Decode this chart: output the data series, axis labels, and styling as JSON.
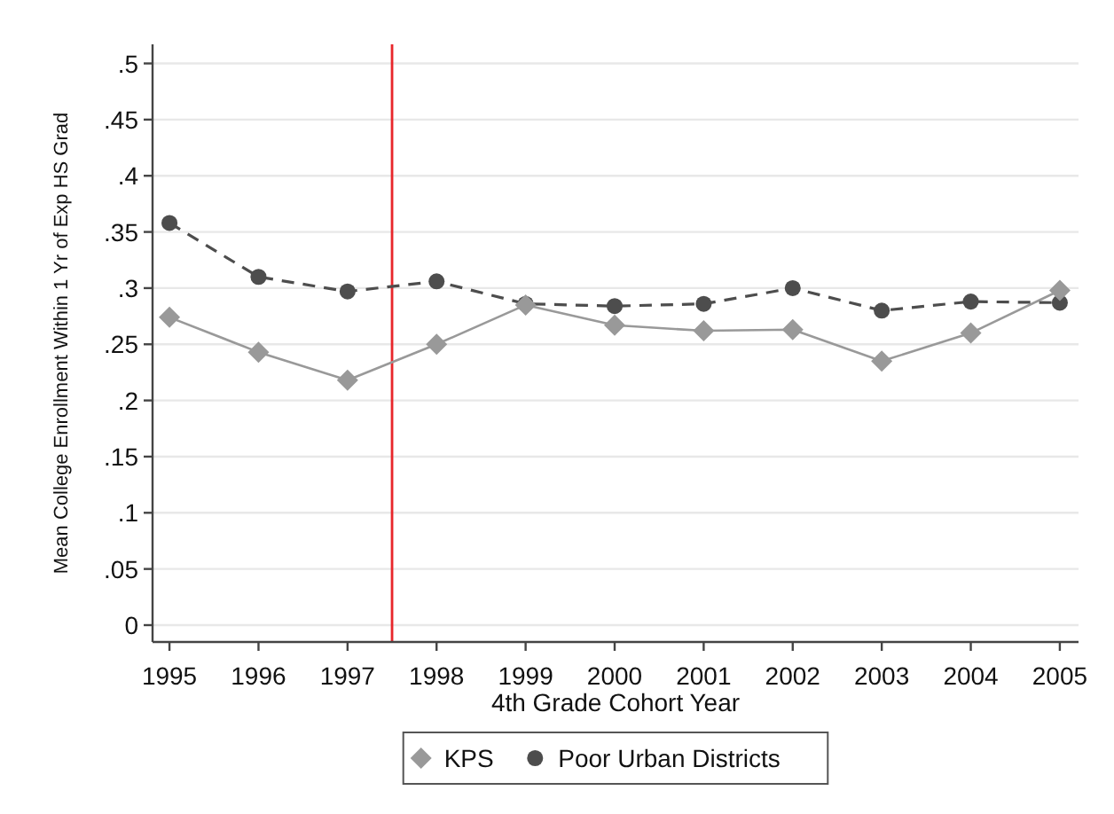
{
  "chart_data": {
    "type": "line",
    "xlabel": "4th Grade Cohort Year",
    "ylabel": "Mean College Enrollment Within 1 Yr of Exp HS Grad",
    "x": [
      1995,
      1996,
      1997,
      1998,
      1999,
      2000,
      2001,
      2002,
      2003,
      2004,
      2005
    ],
    "xlim": [
      1994.81,
      2005.21
    ],
    "xticks": [
      1995,
      1996,
      1997,
      1998,
      1999,
      2000,
      2001,
      2002,
      2003,
      2004,
      2005
    ],
    "ylim": [
      -0.015,
      0.517
    ],
    "yticks": [
      0,
      {
        "value": 0.05,
        "label": ".05"
      },
      {
        "value": 0.1,
        "label": ".1"
      },
      {
        "value": 0.15,
        "label": ".15"
      },
      {
        "value": 0.2,
        "label": ".2"
      },
      {
        "value": 0.25,
        "label": ".25"
      },
      {
        "value": 0.3,
        "label": ".3"
      },
      {
        "value": 0.35,
        "label": ".35"
      },
      {
        "value": 0.4,
        "label": ".4"
      },
      {
        "value": 0.45,
        "label": ".45"
      },
      {
        "value": 0.5,
        "label": ".5"
      }
    ],
    "grid": "y",
    "legend": "bottom",
    "series": [
      {
        "name": "KPS",
        "color": "#999999",
        "marker": "diamond",
        "line_style": "solid",
        "values": [
          0.274,
          0.243,
          0.218,
          0.25,
          0.285,
          0.267,
          0.262,
          0.263,
          0.235,
          0.26,
          0.298
        ]
      },
      {
        "name": "Poor Urban Districts",
        "color": "#4d4d4d",
        "marker": "circle",
        "line_style": "dashed",
        "values": [
          0.358,
          0.31,
          0.297,
          0.306,
          0.286,
          0.284,
          0.286,
          0.3,
          0.28,
          0.288,
          0.287
        ]
      }
    ],
    "ref_lines": [
      {
        "axis": "x",
        "value": 1997.5,
        "color": "#e8262b"
      }
    ]
  }
}
